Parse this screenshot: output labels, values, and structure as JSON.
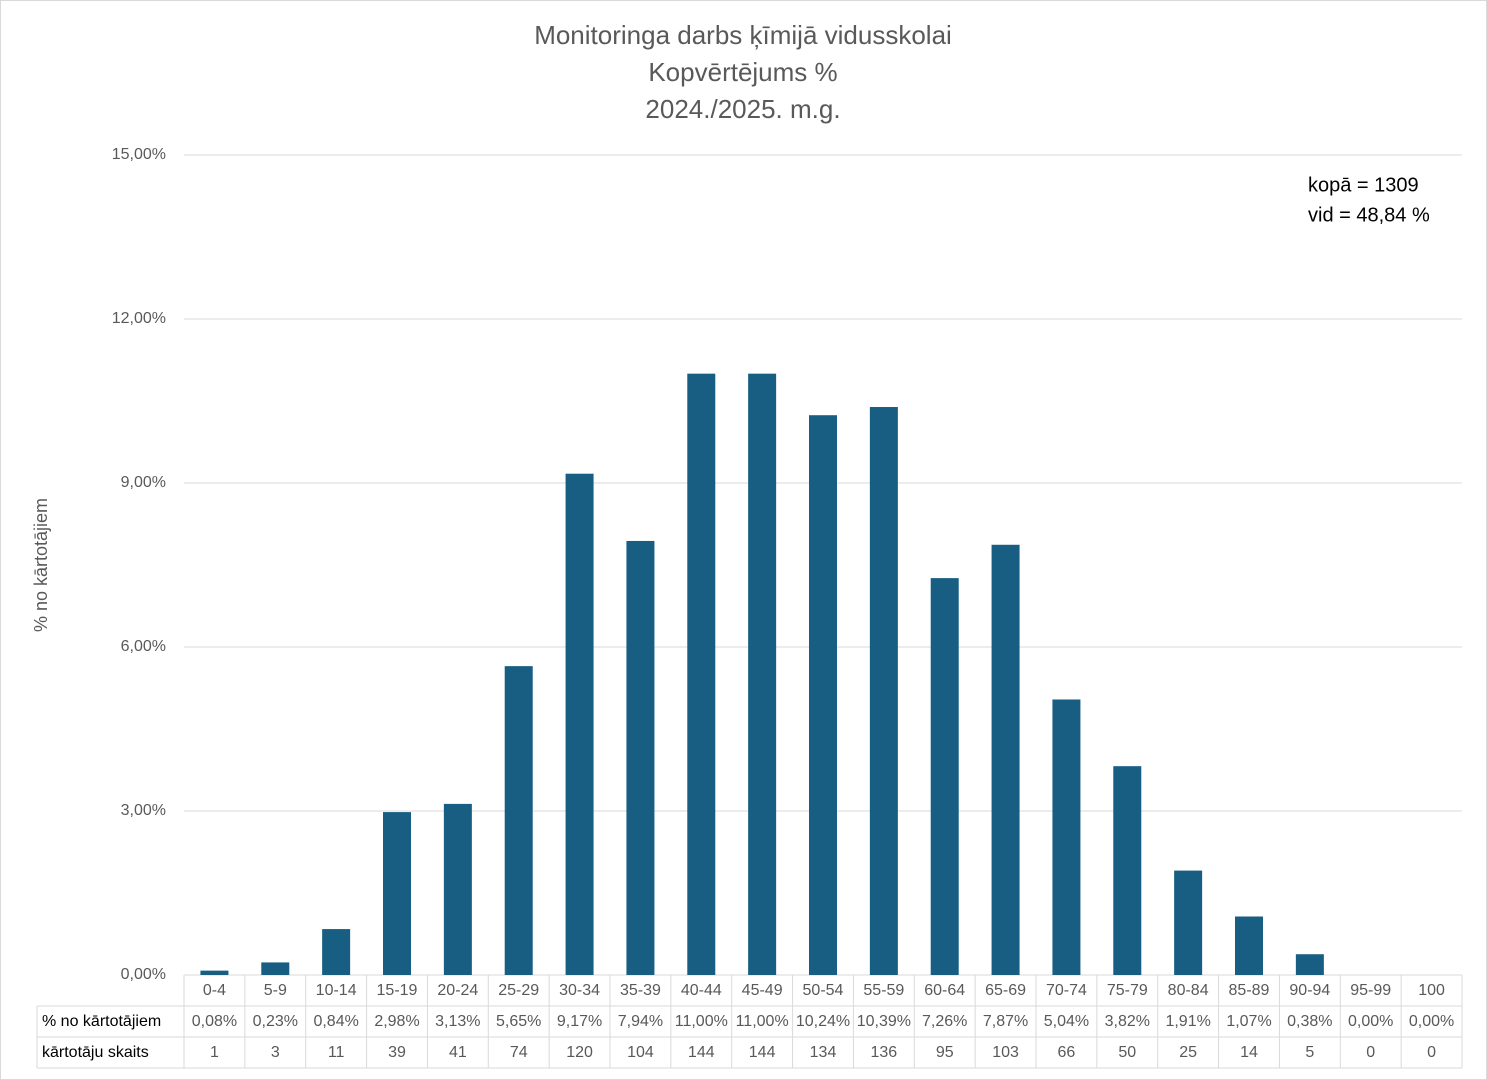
{
  "chart_data": {
    "type": "bar",
    "title": [
      "Monitoringa darbs ķīmijā vidusskolai",
      "Kopvērtējums %",
      "2024./2025. m.g."
    ],
    "y_label": "% no kārtotājiem",
    "annotations": [
      "kopā = 1309",
      "vid = 48,84 %"
    ],
    "categories": [
      "0-4",
      "5-9",
      "10-14",
      "15-19",
      "20-24",
      "25-29",
      "30-34",
      "35-39",
      "40-44",
      "45-49",
      "50-54",
      "55-59",
      "60-64",
      "65-69",
      "70-74",
      "75-79",
      "80-84",
      "85-89",
      "90-94",
      "95-99",
      "100"
    ],
    "series": [
      {
        "name": "% no kārtotājiem",
        "color": "#175e82",
        "values": [
          0.08,
          0.23,
          0.84,
          2.98,
          3.13,
          5.65,
          9.17,
          7.94,
          11.0,
          11.0,
          10.24,
          10.39,
          7.26,
          7.87,
          5.04,
          3.82,
          1.91,
          1.07,
          0.38,
          0.0,
          0.0
        ],
        "value_labels": [
          "0,08%",
          "0,23%",
          "0,84%",
          "2,98%",
          "3,13%",
          "5,65%",
          "9,17%",
          "7,94%",
          "11,00%",
          "11,00%",
          "10,24%",
          "10,39%",
          "7,26%",
          "7,87%",
          "5,04%",
          "3,82%",
          "1,91%",
          "1,07%",
          "0,38%",
          "0,00%",
          "0,00%"
        ]
      }
    ],
    "counts": {
      "name": "kārtotāju skaits",
      "values": [
        1,
        3,
        11,
        39,
        41,
        74,
        120,
        104,
        144,
        144,
        134,
        136,
        95,
        103,
        66,
        50,
        25,
        14,
        5,
        0,
        0
      ]
    },
    "ylim": [
      0,
      15
    ],
    "yticks": [
      {
        "value": 0,
        "label": "0,00%"
      },
      {
        "value": 3,
        "label": "3,00%"
      },
      {
        "value": 6,
        "label": "6,00%"
      },
      {
        "value": 9,
        "label": "9,00%"
      },
      {
        "value": 12,
        "label": "12,00%"
      },
      {
        "value": 15,
        "label": "15,00%"
      }
    ],
    "grid": true
  }
}
